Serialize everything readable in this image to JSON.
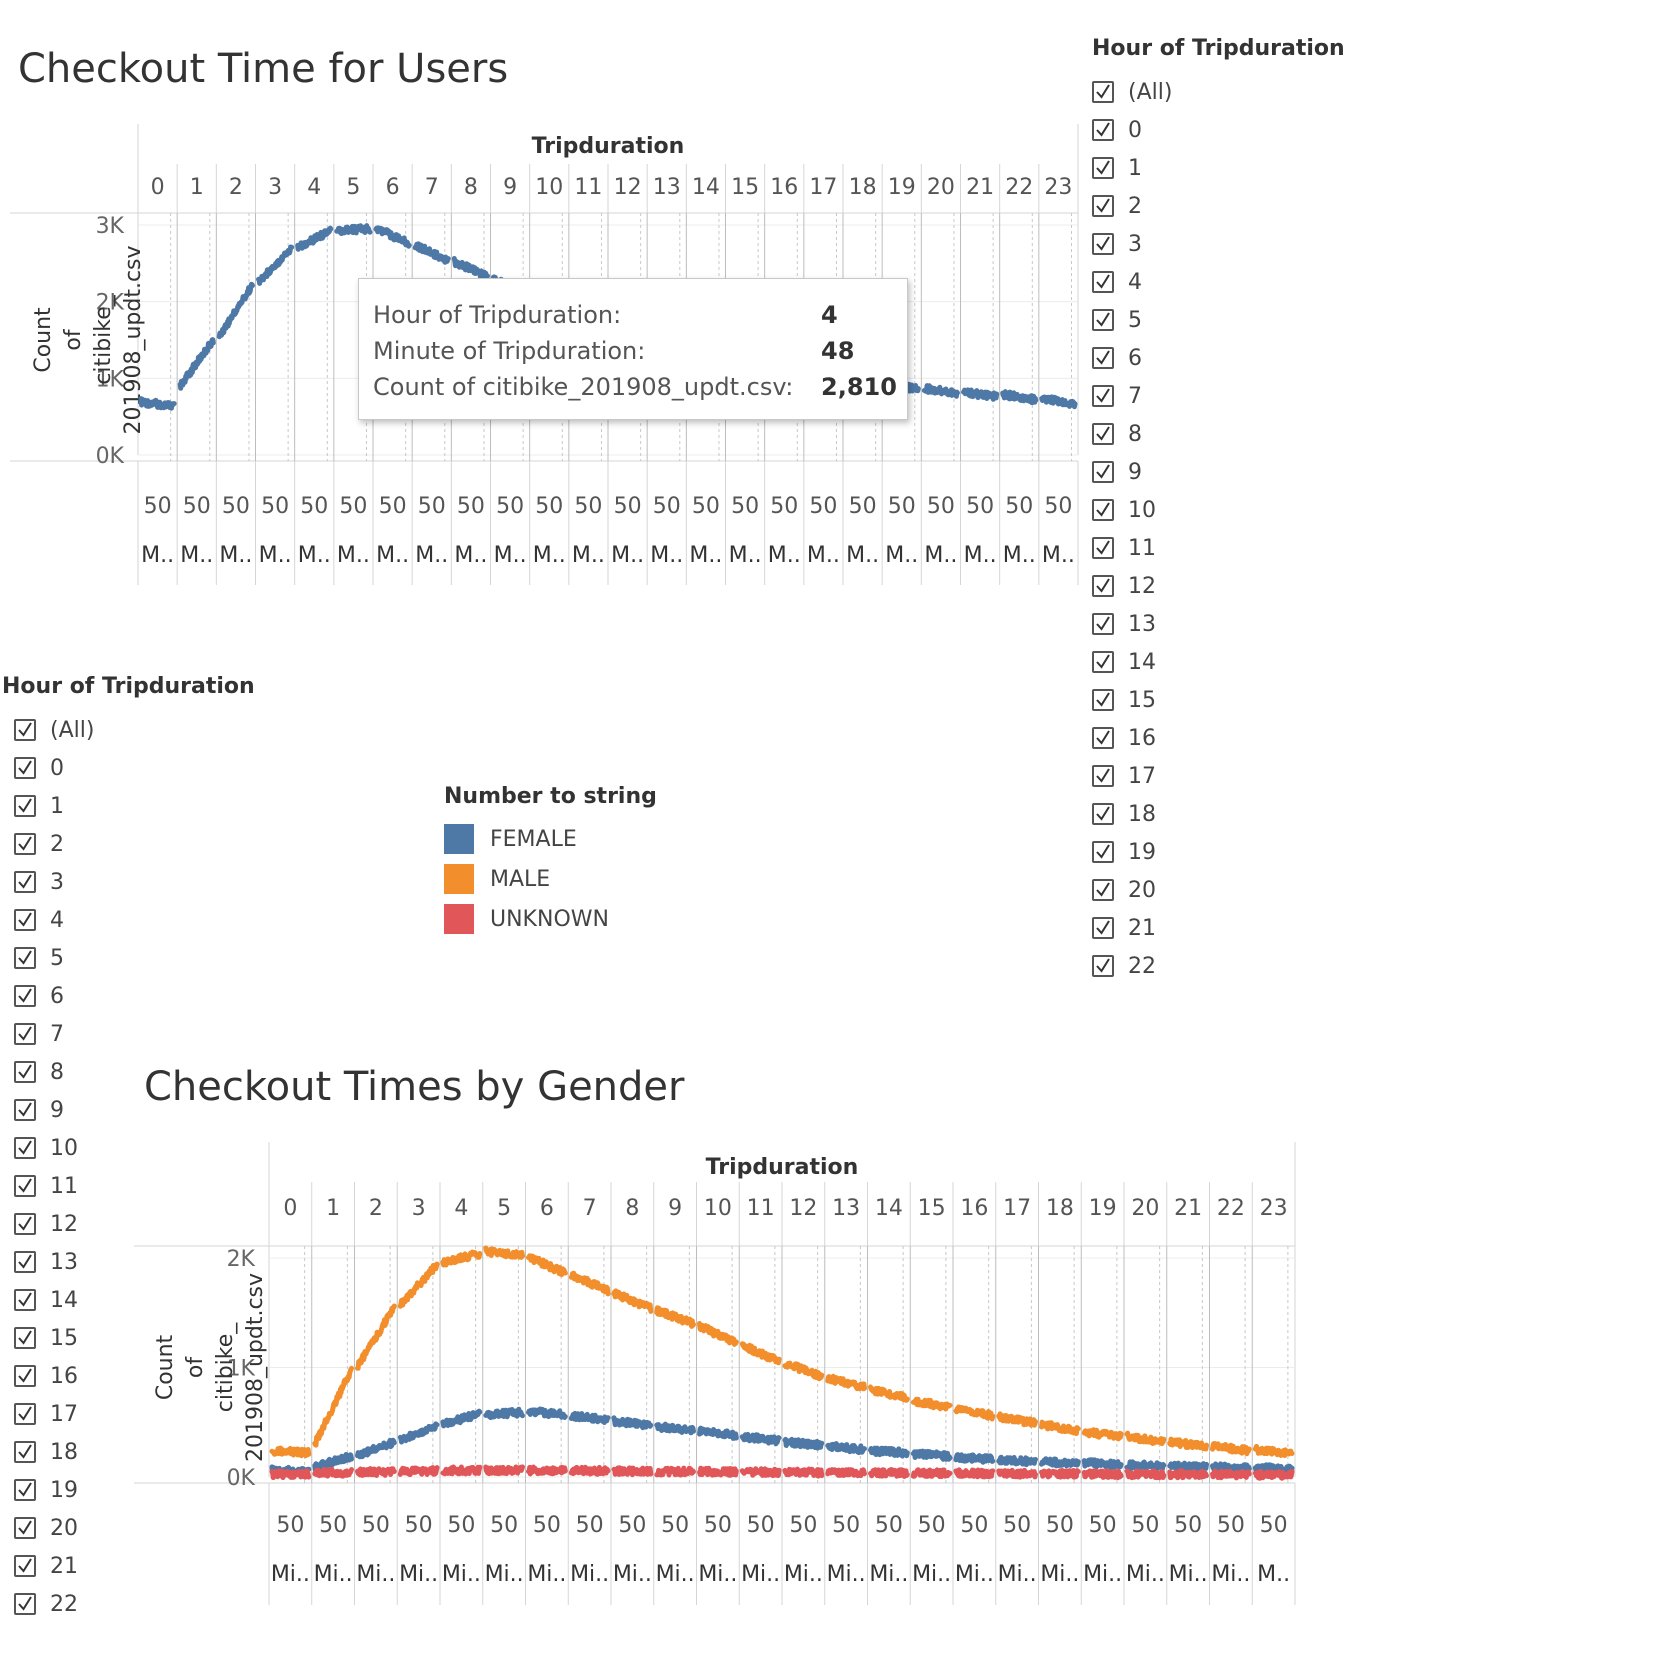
{
  "chart1": {
    "title": "Checkout Time for Users"
  },
  "chart2": {
    "title": "Checkout Times by Gender"
  },
  "filters": {
    "right": {
      "label": "Hour of Tripduration",
      "items": [
        "(All)",
        "0",
        "1",
        "2",
        "3",
        "4",
        "5",
        "6",
        "7",
        "8",
        "9",
        "10",
        "11",
        "12",
        "13",
        "14",
        "15",
        "16",
        "17",
        "18",
        "19",
        "20",
        "21",
        "22"
      ]
    },
    "left": {
      "label": "Hour of Tripduration",
      "items": [
        "(All)",
        "0",
        "1",
        "2",
        "3",
        "4",
        "5",
        "6",
        "7",
        "8",
        "9",
        "10",
        "11",
        "12",
        "13",
        "14",
        "15",
        "16",
        "17",
        "18",
        "19",
        "20",
        "21",
        "22"
      ]
    }
  },
  "legend": {
    "title": "Number to string",
    "items": [
      {
        "label": "FEMALE",
        "color": "#4e79a7"
      },
      {
        "label": "MALE",
        "color": "#f28e2b"
      },
      {
        "label": "UNKNOWN",
        "color": "#e15759"
      }
    ]
  },
  "tooltip": {
    "rows": [
      {
        "label": "Hour of Tripduration:",
        "value": "4"
      },
      {
        "label": "Minute of Tripduration:",
        "value": "48"
      },
      {
        "label": "Count of citibike_201908_updt.csv:",
        "value": "2,810"
      }
    ]
  },
  "chart_data": [
    {
      "type": "line",
      "title": "Checkout Time for Users",
      "column_header": "Tripduration",
      "categories": [
        "0",
        "1",
        "2",
        "3",
        "4",
        "5",
        "6",
        "7",
        "8",
        "9",
        "10",
        "11",
        "12",
        "13",
        "14",
        "15",
        "16",
        "17",
        "18",
        "19",
        "20",
        "21",
        "22",
        "23"
      ],
      "ylabel": "Count of citibike_ 201908_updt.csv",
      "ytick_labels": [
        "3K",
        "2K",
        "1K",
        "0K"
      ],
      "ylim": [
        0,
        3000
      ],
      "yticks": [
        0,
        1000,
        2000,
        3000
      ],
      "x_tick_label": "50",
      "x_axis_label": "M..",
      "grid": true,
      "series": [
        {
          "color": "#4e79a7",
          "hours": [
            {
              "h": 0,
              "start": 690,
              "end": 640
            },
            {
              "h": 1,
              "start": 900,
              "end": 1500
            },
            {
              "h": 2,
              "start": 1550,
              "end": 2220
            },
            {
              "h": 3,
              "start": 2260,
              "end": 2700
            },
            {
              "h": 4,
              "start": 2700,
              "end": 2930
            },
            {
              "h": 5,
              "start": 2930,
              "end": 2950
            },
            {
              "h": 6,
              "start": 2960,
              "end": 2760
            },
            {
              "h": 7,
              "start": 2740,
              "end": 2530
            },
            {
              "h": 8,
              "start": 2520,
              "end": 2330
            },
            {
              "h": 9,
              "start": 2300,
              "end": 2080
            },
            {
              "h": 10,
              "start": 2050,
              "end": 1850
            },
            {
              "h": 11,
              "start": 1820,
              "end": 1650
            },
            {
              "h": 12,
              "start": 1630,
              "end": 1480
            },
            {
              "h": 13,
              "start": 1460,
              "end": 1330
            },
            {
              "h": 14,
              "start": 1310,
              "end": 1200
            },
            {
              "h": 15,
              "start": 1190,
              "end": 1100
            },
            {
              "h": 16,
              "start": 1080,
              "end": 1000
            },
            {
              "h": 17,
              "start": 990,
              "end": 920
            },
            {
              "h": 18,
              "start": 910,
              "end": 860
            },
            {
              "h": 19,
              "start": 930,
              "end": 860
            },
            {
              "h": 20,
              "start": 870,
              "end": 800
            },
            {
              "h": 21,
              "start": 820,
              "end": 760
            },
            {
              "h": 22,
              "start": 790,
              "end": 720
            },
            {
              "h": 23,
              "start": 740,
              "end": 660
            }
          ]
        }
      ]
    },
    {
      "type": "line",
      "title": "Checkout Times by Gender",
      "column_header": "Tripduration",
      "categories": [
        "0",
        "1",
        "2",
        "3",
        "4",
        "5",
        "6",
        "7",
        "8",
        "9",
        "10",
        "11",
        "12",
        "13",
        "14",
        "15",
        "16",
        "17",
        "18",
        "19",
        "20",
        "21",
        "22",
        "23"
      ],
      "ylabel": "Count of citibike_ 201908_updt.csv",
      "ytick_labels": [
        "2K",
        "1K",
        "0K"
      ],
      "ylim": [
        0,
        2000
      ],
      "yticks": [
        0,
        1000,
        2000
      ],
      "x_tick_label": "50",
      "x_axis_labels": [
        "Mi..",
        "Mi..",
        "Mi..",
        "Mi..",
        "Mi..",
        "Mi..",
        "Mi..",
        "Mi..",
        "Mi..",
        "Mi..",
        "Mi..",
        "Mi..",
        "Mi..",
        "Mi..",
        "Mi..",
        "Mi..",
        "Mi..",
        "Mi..",
        "Mi..",
        "Mi..",
        "Mi..",
        "Mi..",
        "Mi..",
        "M.."
      ],
      "grid": true,
      "series": [
        {
          "name": "FEMALE",
          "color": "#4e79a7",
          "hours": [
            {
              "h": 0,
              "start": 60,
              "end": 50
            },
            {
              "h": 1,
              "start": 90,
              "end": 190
            },
            {
              "h": 2,
              "start": 200,
              "end": 320
            },
            {
              "h": 3,
              "start": 340,
              "end": 470
            },
            {
              "h": 4,
              "start": 480,
              "end": 580
            },
            {
              "h": 5,
              "start": 570,
              "end": 590
            },
            {
              "h": 6,
              "start": 600,
              "end": 570
            },
            {
              "h": 7,
              "start": 560,
              "end": 520
            },
            {
              "h": 8,
              "start": 510,
              "end": 470
            },
            {
              "h": 9,
              "start": 460,
              "end": 430
            },
            {
              "h": 10,
              "start": 420,
              "end": 380
            },
            {
              "h": 11,
              "start": 370,
              "end": 330
            },
            {
              "h": 12,
              "start": 320,
              "end": 290
            },
            {
              "h": 13,
              "start": 280,
              "end": 250
            },
            {
              "h": 14,
              "start": 240,
              "end": 220
            },
            {
              "h": 15,
              "start": 210,
              "end": 190
            },
            {
              "h": 16,
              "start": 180,
              "end": 160
            },
            {
              "h": 17,
              "start": 160,
              "end": 140
            },
            {
              "h": 18,
              "start": 140,
              "end": 120
            },
            {
              "h": 19,
              "start": 130,
              "end": 110
            },
            {
              "h": 20,
              "start": 110,
              "end": 100
            },
            {
              "h": 21,
              "start": 100,
              "end": 90
            },
            {
              "h": 22,
              "start": 90,
              "end": 80
            },
            {
              "h": 23,
              "start": 85,
              "end": 75
            }
          ]
        },
        {
          "name": "MALE",
          "color": "#f28e2b",
          "hours": [
            {
              "h": 0,
              "start": 240,
              "end": 220
            },
            {
              "h": 1,
              "start": 300,
              "end": 980
            },
            {
              "h": 2,
              "start": 1010,
              "end": 1550
            },
            {
              "h": 3,
              "start": 1570,
              "end": 1940
            },
            {
              "h": 4,
              "start": 1960,
              "end": 2040
            },
            {
              "h": 5,
              "start": 2060,
              "end": 2020
            },
            {
              "h": 6,
              "start": 2010,
              "end": 1860
            },
            {
              "h": 7,
              "start": 1850,
              "end": 1700
            },
            {
              "h": 8,
              "start": 1680,
              "end": 1540
            },
            {
              "h": 9,
              "start": 1520,
              "end": 1400
            },
            {
              "h": 10,
              "start": 1380,
              "end": 1220
            },
            {
              "h": 11,
              "start": 1200,
              "end": 1060
            },
            {
              "h": 12,
              "start": 1040,
              "end": 920
            },
            {
              "h": 13,
              "start": 900,
              "end": 820
            },
            {
              "h": 14,
              "start": 800,
              "end": 720
            },
            {
              "h": 15,
              "start": 700,
              "end": 630
            },
            {
              "h": 16,
              "start": 620,
              "end": 560
            },
            {
              "h": 17,
              "start": 550,
              "end": 490
            },
            {
              "h": 18,
              "start": 480,
              "end": 420
            },
            {
              "h": 19,
              "start": 410,
              "end": 370
            },
            {
              "h": 20,
              "start": 370,
              "end": 320
            },
            {
              "h": 21,
              "start": 320,
              "end": 280
            },
            {
              "h": 22,
              "start": 280,
              "end": 240
            },
            {
              "h": 23,
              "start": 250,
              "end": 210
            }
          ]
        },
        {
          "name": "UNKNOWN",
          "color": "#e15759",
          "hours": [
            {
              "h": 0,
              "start": 25,
              "end": 25
            },
            {
              "h": 1,
              "start": 40,
              "end": 40
            },
            {
              "h": 2,
              "start": 45,
              "end": 45
            },
            {
              "h": 3,
              "start": 50,
              "end": 55
            },
            {
              "h": 4,
              "start": 60,
              "end": 60
            },
            {
              "h": 5,
              "start": 60,
              "end": 60
            },
            {
              "h": 6,
              "start": 60,
              "end": 60
            },
            {
              "h": 7,
              "start": 60,
              "end": 55
            },
            {
              "h": 8,
              "start": 55,
              "end": 50
            },
            {
              "h": 9,
              "start": 50,
              "end": 50
            },
            {
              "h": 10,
              "start": 50,
              "end": 45
            },
            {
              "h": 11,
              "start": 45,
              "end": 45
            },
            {
              "h": 12,
              "start": 45,
              "end": 40
            },
            {
              "h": 13,
              "start": 40,
              "end": 40
            },
            {
              "h": 14,
              "start": 40,
              "end": 35
            },
            {
              "h": 15,
              "start": 35,
              "end": 35
            },
            {
              "h": 16,
              "start": 35,
              "end": 30
            },
            {
              "h": 17,
              "start": 30,
              "end": 30
            },
            {
              "h": 18,
              "start": 30,
              "end": 30
            },
            {
              "h": 19,
              "start": 30,
              "end": 25
            },
            {
              "h": 20,
              "start": 25,
              "end": 25
            },
            {
              "h": 21,
              "start": 25,
              "end": 25
            },
            {
              "h": 22,
              "start": 25,
              "end": 20
            },
            {
              "h": 23,
              "start": 20,
              "end": 20
            }
          ]
        }
      ]
    }
  ]
}
